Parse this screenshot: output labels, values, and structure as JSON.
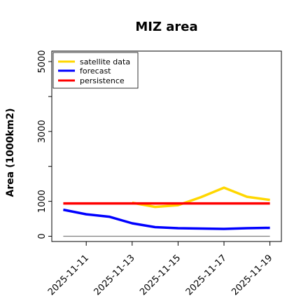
{
  "chart_data": {
    "type": "line",
    "title": "MIZ area",
    "xlabel": "",
    "ylabel": "Area (1000km2)",
    "x": [
      "2025-11-11",
      "2025-11-12",
      "2025-11-13",
      "2025-11-14",
      "2025-11-15",
      "2025-11-16",
      "2025-11-17",
      "2025-11-18",
      "2025-11-19"
    ],
    "x_tick_labels": [
      "2025-11-11",
      "2025-11-13",
      "2025-11-15",
      "2025-11-17",
      "2025-11-19"
    ],
    "x_tick_dates": [
      "2025-11-11",
      "2025-11-13",
      "2025-11-15",
      "2025-11-17",
      "2025-11-19"
    ],
    "highlight_tick_color": "#228b22",
    "ylim": [
      -150,
      5300
    ],
    "y_ticks": [
      0,
      1000,
      3000,
      5000
    ],
    "y_tick_labels": [
      "0",
      "1000",
      "3000",
      "5000"
    ],
    "grid": false,
    "legend_position": "top-left",
    "reference_line": {
      "y": 0,
      "color": "#808080"
    },
    "series": [
      {
        "name": "satellite data",
        "color": "#ffd700",
        "x": [
          "2025-11-13",
          "2025-11-14",
          "2025-11-15",
          "2025-11-16",
          "2025-11-17",
          "2025-11-18",
          "2025-11-19"
        ],
        "values": [
          960,
          840,
          890,
          1120,
          1390,
          1130,
          1040
        ]
      },
      {
        "name": "forecast",
        "color": "#0000ff",
        "x": [
          "2025-11-10",
          "2025-11-11",
          "2025-11-12",
          "2025-11-13",
          "2025-11-14",
          "2025-11-15",
          "2025-11-16",
          "2025-11-17",
          "2025-11-18",
          "2025-11-19"
        ],
        "values": [
          760,
          630,
          560,
          370,
          260,
          230,
          220,
          210,
          230,
          240
        ]
      },
      {
        "name": "persistence",
        "color": "#ff0000",
        "x": [
          "2025-11-10",
          "2025-11-19"
        ],
        "values": [
          940,
          940
        ]
      }
    ]
  }
}
